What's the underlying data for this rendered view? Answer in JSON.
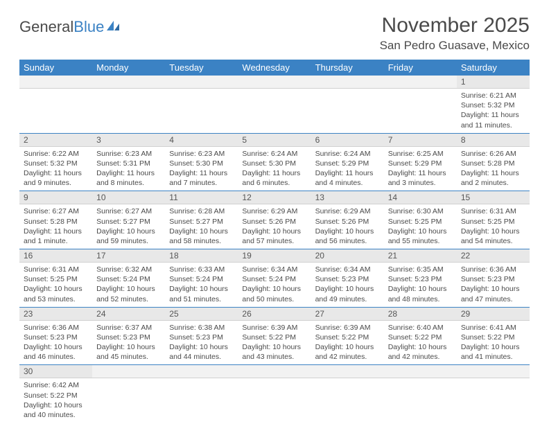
{
  "logo": {
    "text_dark": "General",
    "text_blue": "Blue"
  },
  "header": {
    "month_title": "November 2025",
    "location": "San Pedro Guasave, Mexico"
  },
  "colors": {
    "header_bg": "#3b82c4",
    "header_text": "#ffffff",
    "daynum_bg": "#e8e8e8",
    "row_border": "#3b82c4",
    "body_text": "#4a4a4a"
  },
  "weekdays": [
    "Sunday",
    "Monday",
    "Tuesday",
    "Wednesday",
    "Thursday",
    "Friday",
    "Saturday"
  ],
  "weeks": [
    [
      null,
      null,
      null,
      null,
      null,
      null,
      {
        "n": "1",
        "sunrise": "6:21 AM",
        "sunset": "5:32 PM",
        "daylight": "11 hours and 11 minutes."
      }
    ],
    [
      {
        "n": "2",
        "sunrise": "6:22 AM",
        "sunset": "5:32 PM",
        "daylight": "11 hours and 9 minutes."
      },
      {
        "n": "3",
        "sunrise": "6:23 AM",
        "sunset": "5:31 PM",
        "daylight": "11 hours and 8 minutes."
      },
      {
        "n": "4",
        "sunrise": "6:23 AM",
        "sunset": "5:30 PM",
        "daylight": "11 hours and 7 minutes."
      },
      {
        "n": "5",
        "sunrise": "6:24 AM",
        "sunset": "5:30 PM",
        "daylight": "11 hours and 6 minutes."
      },
      {
        "n": "6",
        "sunrise": "6:24 AM",
        "sunset": "5:29 PM",
        "daylight": "11 hours and 4 minutes."
      },
      {
        "n": "7",
        "sunrise": "6:25 AM",
        "sunset": "5:29 PM",
        "daylight": "11 hours and 3 minutes."
      },
      {
        "n": "8",
        "sunrise": "6:26 AM",
        "sunset": "5:28 PM",
        "daylight": "11 hours and 2 minutes."
      }
    ],
    [
      {
        "n": "9",
        "sunrise": "6:27 AM",
        "sunset": "5:28 PM",
        "daylight": "11 hours and 1 minute."
      },
      {
        "n": "10",
        "sunrise": "6:27 AM",
        "sunset": "5:27 PM",
        "daylight": "10 hours and 59 minutes."
      },
      {
        "n": "11",
        "sunrise": "6:28 AM",
        "sunset": "5:27 PM",
        "daylight": "10 hours and 58 minutes."
      },
      {
        "n": "12",
        "sunrise": "6:29 AM",
        "sunset": "5:26 PM",
        "daylight": "10 hours and 57 minutes."
      },
      {
        "n": "13",
        "sunrise": "6:29 AM",
        "sunset": "5:26 PM",
        "daylight": "10 hours and 56 minutes."
      },
      {
        "n": "14",
        "sunrise": "6:30 AM",
        "sunset": "5:25 PM",
        "daylight": "10 hours and 55 minutes."
      },
      {
        "n": "15",
        "sunrise": "6:31 AM",
        "sunset": "5:25 PM",
        "daylight": "10 hours and 54 minutes."
      }
    ],
    [
      {
        "n": "16",
        "sunrise": "6:31 AM",
        "sunset": "5:25 PM",
        "daylight": "10 hours and 53 minutes."
      },
      {
        "n": "17",
        "sunrise": "6:32 AM",
        "sunset": "5:24 PM",
        "daylight": "10 hours and 52 minutes."
      },
      {
        "n": "18",
        "sunrise": "6:33 AM",
        "sunset": "5:24 PM",
        "daylight": "10 hours and 51 minutes."
      },
      {
        "n": "19",
        "sunrise": "6:34 AM",
        "sunset": "5:24 PM",
        "daylight": "10 hours and 50 minutes."
      },
      {
        "n": "20",
        "sunrise": "6:34 AM",
        "sunset": "5:23 PM",
        "daylight": "10 hours and 49 minutes."
      },
      {
        "n": "21",
        "sunrise": "6:35 AM",
        "sunset": "5:23 PM",
        "daylight": "10 hours and 48 minutes."
      },
      {
        "n": "22",
        "sunrise": "6:36 AM",
        "sunset": "5:23 PM",
        "daylight": "10 hours and 47 minutes."
      }
    ],
    [
      {
        "n": "23",
        "sunrise": "6:36 AM",
        "sunset": "5:23 PM",
        "daylight": "10 hours and 46 minutes."
      },
      {
        "n": "24",
        "sunrise": "6:37 AM",
        "sunset": "5:23 PM",
        "daylight": "10 hours and 45 minutes."
      },
      {
        "n": "25",
        "sunrise": "6:38 AM",
        "sunset": "5:23 PM",
        "daylight": "10 hours and 44 minutes."
      },
      {
        "n": "26",
        "sunrise": "6:39 AM",
        "sunset": "5:22 PM",
        "daylight": "10 hours and 43 minutes."
      },
      {
        "n": "27",
        "sunrise": "6:39 AM",
        "sunset": "5:22 PM",
        "daylight": "10 hours and 42 minutes."
      },
      {
        "n": "28",
        "sunrise": "6:40 AM",
        "sunset": "5:22 PM",
        "daylight": "10 hours and 42 minutes."
      },
      {
        "n": "29",
        "sunrise": "6:41 AM",
        "sunset": "5:22 PM",
        "daylight": "10 hours and 41 minutes."
      }
    ],
    [
      {
        "n": "30",
        "sunrise": "6:42 AM",
        "sunset": "5:22 PM",
        "daylight": "10 hours and 40 minutes."
      },
      null,
      null,
      null,
      null,
      null,
      null
    ]
  ],
  "labels": {
    "sunrise_prefix": "Sunrise: ",
    "sunset_prefix": "Sunset: ",
    "daylight_prefix": "Daylight: "
  }
}
